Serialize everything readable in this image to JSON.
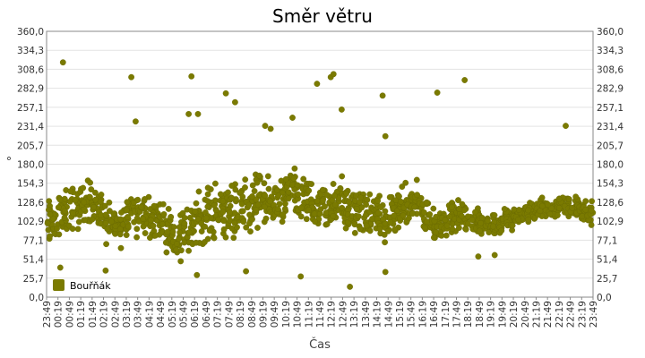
{
  "chart_data": {
    "type": "scatter",
    "title": "Směr větru",
    "xlabel": "Čas",
    "ylabel": "°",
    "ylim": [
      0,
      360
    ],
    "yticks": [
      "0,0",
      "25,7",
      "51,4",
      "77,1",
      "102,9",
      "128,6",
      "154,3",
      "180,0",
      "205,7",
      "231,4",
      "257,1",
      "282,9",
      "308,6",
      "334,3",
      "360,0"
    ],
    "xticks": [
      "23:49",
      "00:19",
      "00:49",
      "01:19",
      "01:49",
      "02:19",
      "02:49",
      "03:19",
      "03:49",
      "04:19",
      "04:49",
      "05:19",
      "05:49",
      "06:19",
      "06:49",
      "07:19",
      "07:49",
      "08:19",
      "08:49",
      "09:19",
      "09:49",
      "10:19",
      "10:49",
      "11:19",
      "11:49",
      "12:19",
      "12:49",
      "13:19",
      "13:49",
      "14:19",
      "14:49",
      "15:19",
      "15:49",
      "16:19",
      "16:49",
      "17:19",
      "17:49",
      "18:19",
      "18:49",
      "19:19",
      "19:49",
      "20:19",
      "20:49",
      "21:19",
      "21:49",
      "22:19",
      "22:49",
      "23:19",
      "23:49"
    ],
    "grid": "horizontal",
    "right_axis": true,
    "legend_position": "bottom-left",
    "series": [
      {
        "name": "Bouřňák",
        "color": "#7a7a00",
        "x_start": "23:49",
        "x_end": "23:49",
        "points_per_segment": 28,
        "segments": [
          {
            "center": 100,
            "spread": 45
          },
          {
            "center": 115,
            "spread": 40
          },
          {
            "center": 120,
            "spread": 40
          },
          {
            "center": 130,
            "spread": 40
          },
          {
            "center": 120,
            "spread": 35
          },
          {
            "center": 100,
            "spread": 35
          },
          {
            "center": 100,
            "spread": 40
          },
          {
            "center": 115,
            "spread": 45
          },
          {
            "center": 110,
            "spread": 40
          },
          {
            "center": 105,
            "spread": 40
          },
          {
            "center": 95,
            "spread": 40
          },
          {
            "center": 85,
            "spread": 45
          },
          {
            "center": 90,
            "spread": 45
          },
          {
            "center": 110,
            "spread": 50
          },
          {
            "center": 115,
            "spread": 50
          },
          {
            "center": 120,
            "spread": 55
          },
          {
            "center": 110,
            "spread": 55
          },
          {
            "center": 125,
            "spread": 50
          },
          {
            "center": 130,
            "spread": 50
          },
          {
            "center": 125,
            "spread": 45
          },
          {
            "center": 130,
            "spread": 45
          },
          {
            "center": 140,
            "spread": 45
          },
          {
            "center": 130,
            "spread": 45
          },
          {
            "center": 120,
            "spread": 45
          },
          {
            "center": 115,
            "spread": 45
          },
          {
            "center": 130,
            "spread": 50
          },
          {
            "center": 120,
            "spread": 45
          },
          {
            "center": 115,
            "spread": 45
          },
          {
            "center": 110,
            "spread": 45
          },
          {
            "center": 105,
            "spread": 45
          },
          {
            "center": 115,
            "spread": 45
          },
          {
            "center": 120,
            "spread": 40
          },
          {
            "center": 125,
            "spread": 40
          },
          {
            "center": 110,
            "spread": 35
          },
          {
            "center": 100,
            "spread": 30
          },
          {
            "center": 105,
            "spread": 30
          },
          {
            "center": 110,
            "spread": 30
          },
          {
            "center": 105,
            "spread": 25
          },
          {
            "center": 100,
            "spread": 25
          },
          {
            "center": 100,
            "spread": 25
          },
          {
            "center": 105,
            "spread": 20
          },
          {
            "center": 110,
            "spread": 20
          },
          {
            "center": 115,
            "spread": 20
          },
          {
            "center": 120,
            "spread": 20
          },
          {
            "center": 120,
            "spread": 20
          },
          {
            "center": 125,
            "spread": 20
          },
          {
            "center": 120,
            "spread": 20
          },
          {
            "center": 115,
            "spread": 20
          }
        ],
        "outliers": [
          {
            "t": 0.03,
            "v": 318
          },
          {
            "t": 0.155,
            "v": 298
          },
          {
            "t": 0.265,
            "v": 299
          },
          {
            "t": 0.328,
            "v": 276
          },
          {
            "t": 0.345,
            "v": 264
          },
          {
            "t": 0.495,
            "v": 289
          },
          {
            "t": 0.52,
            "v": 298
          },
          {
            "t": 0.525,
            "v": 302
          },
          {
            "t": 0.54,
            "v": 254
          },
          {
            "t": 0.615,
            "v": 273
          },
          {
            "t": 0.715,
            "v": 277
          },
          {
            "t": 0.765,
            "v": 294
          },
          {
            "t": 0.95,
            "v": 232
          },
          {
            "t": 0.163,
            "v": 238
          },
          {
            "t": 0.26,
            "v": 248
          },
          {
            "t": 0.277,
            "v": 248
          },
          {
            "t": 0.45,
            "v": 243
          },
          {
            "t": 0.275,
            "v": 30
          },
          {
            "t": 0.465,
            "v": 28
          },
          {
            "t": 0.555,
            "v": 14
          },
          {
            "t": 0.365,
            "v": 35
          },
          {
            "t": 0.025,
            "v": 40
          },
          {
            "t": 0.108,
            "v": 36
          },
          {
            "t": 0.62,
            "v": 34
          },
          {
            "t": 0.79,
            "v": 55
          },
          {
            "t": 0.82,
            "v": 57
          },
          {
            "t": 0.4,
            "v": 232
          },
          {
            "t": 0.41,
            "v": 228
          },
          {
            "t": 0.62,
            "v": 218
          }
        ]
      }
    ]
  }
}
